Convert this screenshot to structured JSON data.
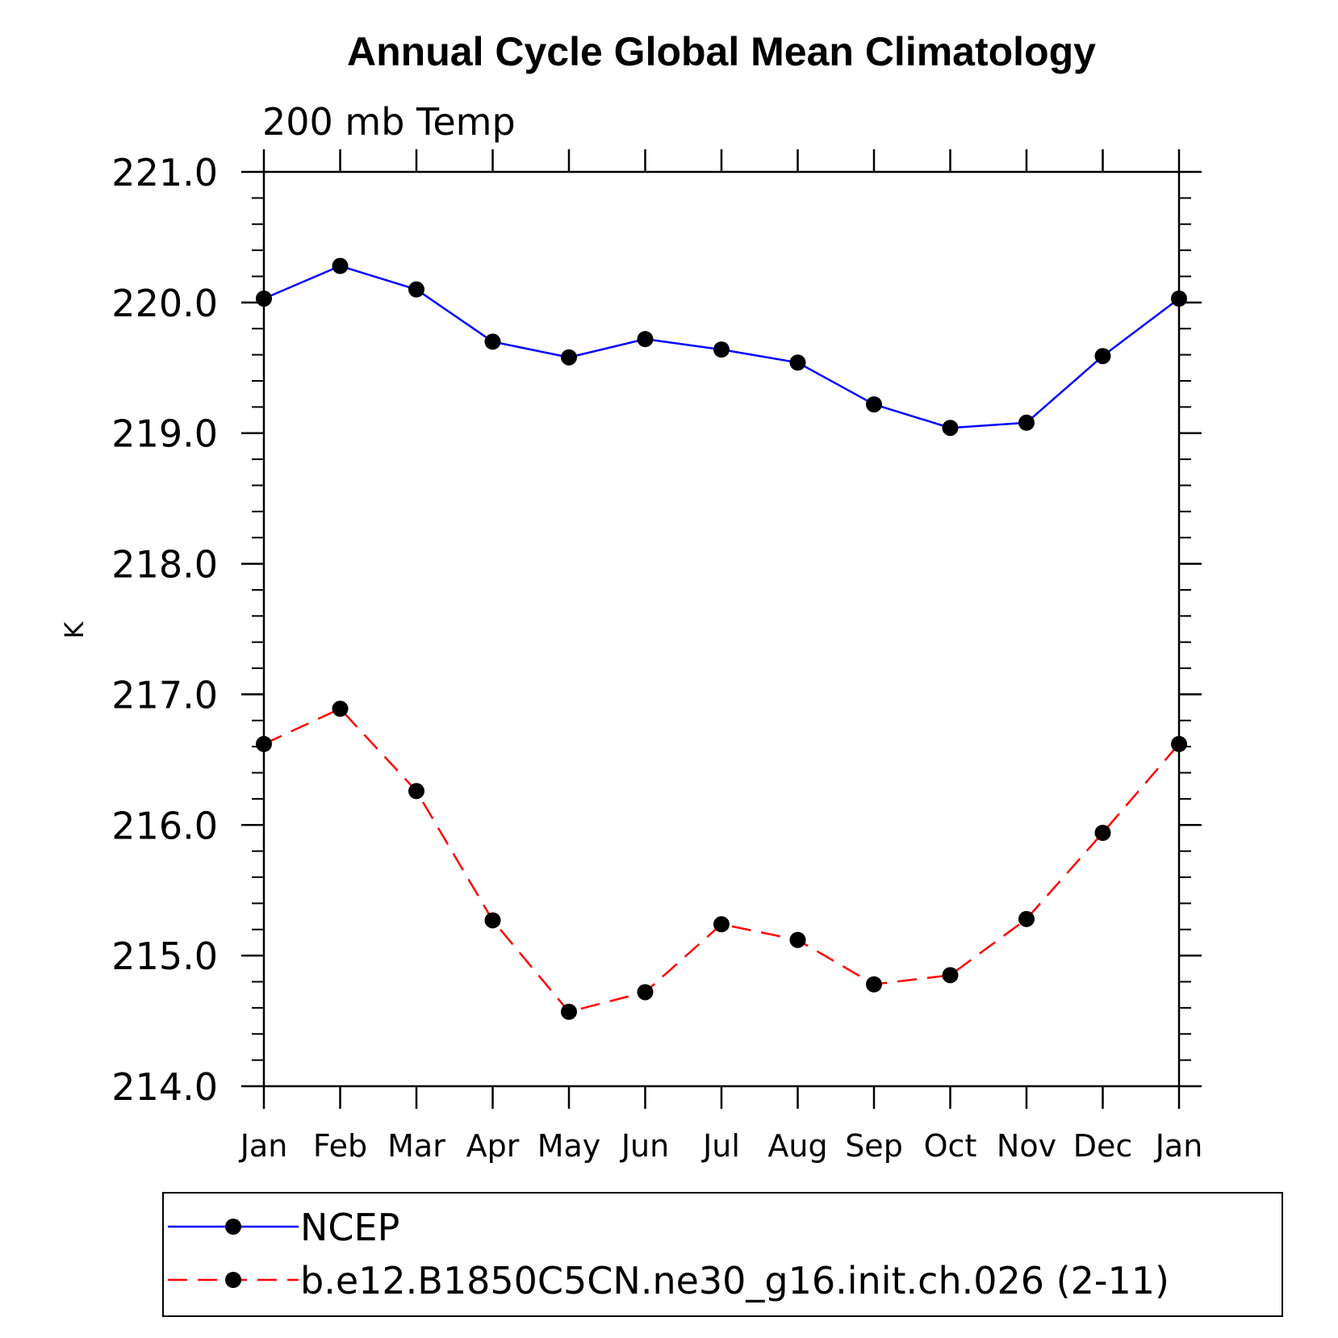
{
  "chart_data": {
    "type": "line",
    "title": "Annual Cycle Global Mean Climatology",
    "subtitle": "200 mb Temp",
    "ylabel": "K",
    "xlabel": "",
    "categories": [
      "Jan",
      "Feb",
      "Mar",
      "Apr",
      "May",
      "Jun",
      "Jul",
      "Aug",
      "Sep",
      "Oct",
      "Nov",
      "Dec",
      "Jan"
    ],
    "ylim": [
      214.0,
      221.0
    ],
    "yticks": [
      "214.0",
      "215.0",
      "216.0",
      "217.0",
      "218.0",
      "219.0",
      "220.0",
      "221.0"
    ],
    "grid": false,
    "legend_position": "bottom",
    "series": [
      {
        "name": "NCEP",
        "color": "#0000ff",
        "dash": "solid",
        "marker": "filled-circle",
        "values": [
          220.03,
          220.28,
          220.1,
          219.7,
          219.58,
          219.72,
          219.64,
          219.54,
          219.22,
          219.04,
          219.08,
          219.59,
          220.03
        ]
      },
      {
        "name": "b.e12.B1850C5CN.ne30_g16.init.ch.026 (2-11)",
        "color": "#ff0000",
        "dash": "dashed",
        "marker": "filled-circle",
        "values": [
          216.62,
          216.89,
          216.26,
          215.27,
          214.57,
          214.72,
          215.24,
          215.12,
          214.78,
          214.85,
          215.28,
          215.94,
          216.62
        ]
      }
    ]
  }
}
